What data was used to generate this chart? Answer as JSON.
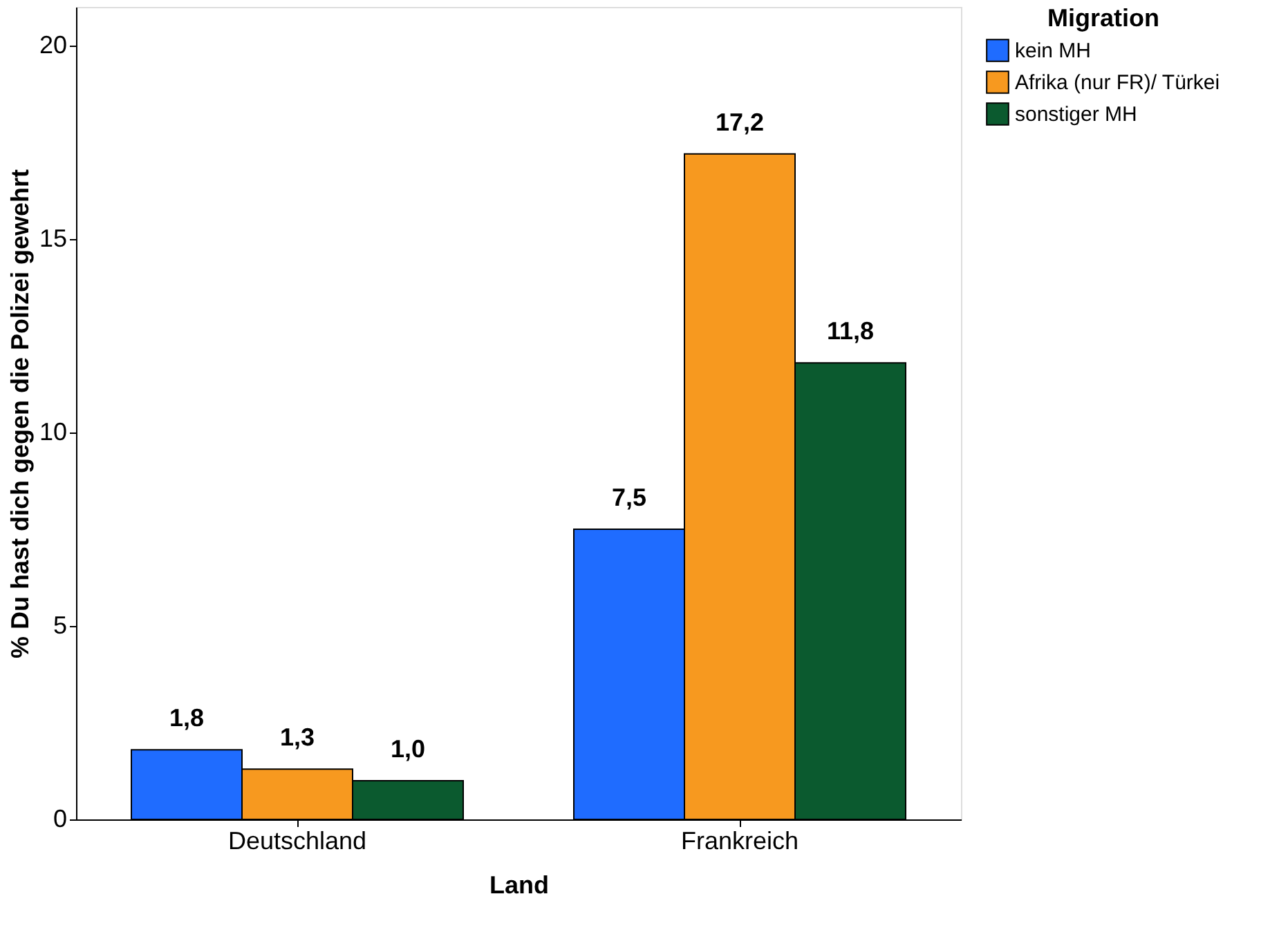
{
  "chart_data": {
    "type": "bar",
    "xlabel": "Land",
    "ylabel": "% Du hast dich gegen die Polizei gewehrt",
    "legend_title": "Migration",
    "categories": [
      "Deutschland",
      "Frankreich"
    ],
    "series": [
      {
        "name": "kein MH",
        "color": "#1f6cff",
        "values": [
          1.8,
          7.5
        ],
        "value_labels": [
          "1,8",
          "7,5"
        ]
      },
      {
        "name": "Afrika (nur FR)/ Türkei",
        "color": "#f7991f",
        "values": [
          1.3,
          17.2
        ],
        "value_labels": [
          "1,3",
          "17,2"
        ]
      },
      {
        "name": "sonstiger MH",
        "color": "#0b5a2f",
        "values": [
          1.0,
          11.8
        ],
        "value_labels": [
          "1,0",
          "11,8"
        ]
      }
    ],
    "ylim": [
      0,
      21
    ],
    "yticks": [
      0,
      5,
      10,
      15,
      20
    ],
    "grid": false,
    "legend": "top right"
  }
}
